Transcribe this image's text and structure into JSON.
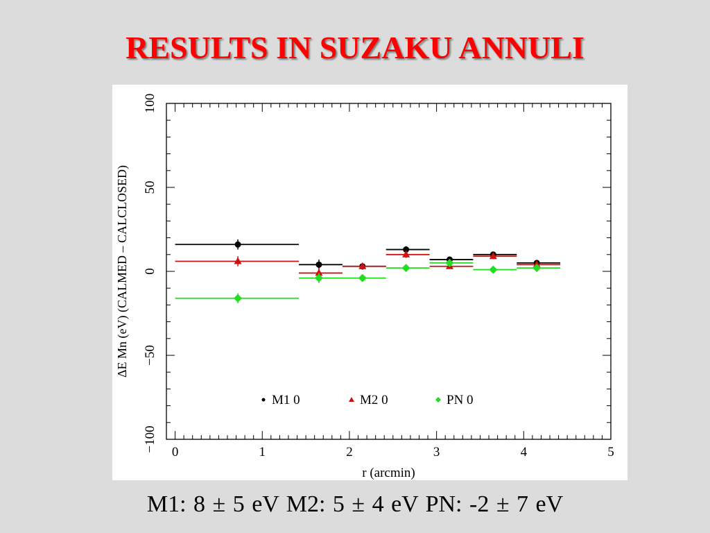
{
  "slide": {
    "title": "RESULTS IN SUZAKU ANNULI",
    "summary": "M1: 8 ± 5 eV  M2: 5 ± 4 eV  PN: -2 ± 7 eV"
  },
  "chart_data": {
    "type": "scatter",
    "title": "",
    "xlabel": "r (arcmin)",
    "ylabel": "ΔE Mn (eV) (CALMED – CALCLOSED)",
    "xlim": [
      -0.1,
      5
    ],
    "ylim": [
      -100,
      100
    ],
    "xticks": [
      "0",
      "1",
      "2",
      "3",
      "4",
      "5"
    ],
    "xtick_values": [
      0,
      1,
      2,
      3,
      4,
      5
    ],
    "yticks": [
      "−100",
      "−50",
      "0",
      "50",
      "100"
    ],
    "ytick_values": [
      -100,
      -50,
      0,
      50,
      100
    ],
    "grid": false,
    "legend_position": "bottom-center",
    "series": [
      {
        "name": "M1 0",
        "color": "#000000",
        "marker": "circle",
        "points": [
          {
            "x": 0.72,
            "x_low": 0.0,
            "x_high": 1.42,
            "y": 16,
            "y_err": 3
          },
          {
            "x": 1.65,
            "x_low": 1.42,
            "x_high": 1.92,
            "y": 4,
            "y_err": 3
          },
          {
            "x": 2.15,
            "x_low": 1.92,
            "x_high": 2.42,
            "y": 3,
            "y_err": 2
          },
          {
            "x": 2.65,
            "x_low": 2.42,
            "x_high": 2.92,
            "y": 13,
            "y_err": 2
          },
          {
            "x": 3.15,
            "x_low": 2.92,
            "x_high": 3.42,
            "y": 7,
            "y_err": 1
          },
          {
            "x": 3.65,
            "x_low": 3.42,
            "x_high": 3.92,
            "y": 10,
            "y_err": 1
          },
          {
            "x": 4.15,
            "x_low": 3.92,
            "x_high": 4.42,
            "y": 5,
            "y_err": 1
          }
        ]
      },
      {
        "name": "M2 0",
        "color": "#cc1111",
        "marker": "triangle",
        "points": [
          {
            "x": 0.72,
            "x_low": 0.0,
            "x_high": 1.42,
            "y": 6,
            "y_err": 3
          },
          {
            "x": 1.65,
            "x_low": 1.42,
            "x_high": 1.92,
            "y": -1,
            "y_err": 3
          },
          {
            "x": 2.15,
            "x_low": 1.92,
            "x_high": 2.42,
            "y": 3,
            "y_err": 2
          },
          {
            "x": 2.65,
            "x_low": 2.42,
            "x_high": 2.92,
            "y": 10,
            "y_err": 2
          },
          {
            "x": 3.15,
            "x_low": 2.92,
            "x_high": 3.42,
            "y": 3,
            "y_err": 1
          },
          {
            "x": 3.65,
            "x_low": 3.42,
            "x_high": 3.92,
            "y": 9,
            "y_err": 1
          },
          {
            "x": 4.15,
            "x_low": 3.92,
            "x_high": 4.42,
            "y": 4,
            "y_err": 1
          }
        ]
      },
      {
        "name": "PN 0",
        "color": "#22dd22",
        "marker": "diamond",
        "points": [
          {
            "x": 0.72,
            "x_low": 0.0,
            "x_high": 1.42,
            "y": -16,
            "y_err": 3
          },
          {
            "x": 1.65,
            "x_low": 1.42,
            "x_high": 1.92,
            "y": -4,
            "y_err": 3
          },
          {
            "x": 2.15,
            "x_low": 1.92,
            "x_high": 2.42,
            "y": -4,
            "y_err": 2
          },
          {
            "x": 2.65,
            "x_low": 2.42,
            "x_high": 2.92,
            "y": 2,
            "y_err": 2
          },
          {
            "x": 3.15,
            "x_low": 2.92,
            "x_high": 3.42,
            "y": 5,
            "y_err": 1
          },
          {
            "x": 3.65,
            "x_low": 3.42,
            "x_high": 3.92,
            "y": 1,
            "y_err": 1
          },
          {
            "x": 4.15,
            "x_low": 3.92,
            "x_high": 4.42,
            "y": 2,
            "y_err": 1
          }
        ]
      }
    ]
  }
}
